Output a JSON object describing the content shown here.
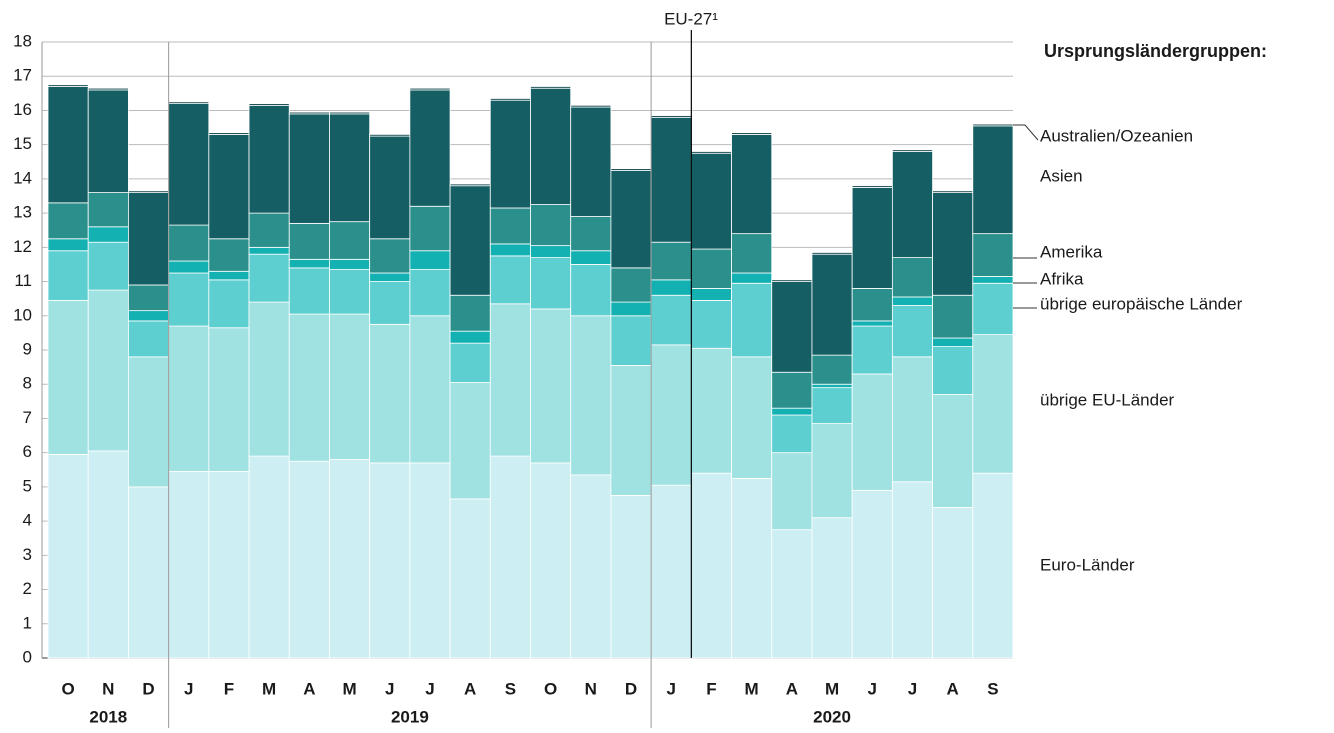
{
  "chart_data": {
    "type": "stacked-bar",
    "annotation": "EU-27¹",
    "legend_title": "Ursprungsländergruppen:",
    "categories": [
      "O",
      "N",
      "D",
      "J",
      "F",
      "M",
      "A",
      "M",
      "J",
      "J",
      "A",
      "S",
      "O",
      "N",
      "D",
      "J",
      "F",
      "M",
      "A",
      "M",
      "J",
      "J",
      "A",
      "S"
    ],
    "years": [
      "2018",
      "2019",
      "2020"
    ],
    "ylim": [
      0,
      18
    ],
    "yticks": [
      0,
      1,
      2,
      3,
      4,
      5,
      6,
      7,
      8,
      9,
      10,
      11,
      12,
      13,
      14,
      15,
      16,
      17,
      18
    ],
    "grid": true,
    "series": [
      {
        "name": "Euro-Länder",
        "color": "#cdeff3",
        "values": [
          5.95,
          6.05,
          5.0,
          5.45,
          5.45,
          5.9,
          5.75,
          5.8,
          5.7,
          5.7,
          4.65,
          5.9,
          5.7,
          5.35,
          4.75,
          5.05,
          5.4,
          5.25,
          3.75,
          4.1,
          4.9,
          5.15,
          4.4,
          5.4
        ]
      },
      {
        "name": "übrige EU-Länder",
        "color": "#a0e1e2",
        "values": [
          4.5,
          4.7,
          3.8,
          4.25,
          4.2,
          4.5,
          4.3,
          4.25,
          4.05,
          4.3,
          3.4,
          4.45,
          4.5,
          4.65,
          3.8,
          4.1,
          3.65,
          3.55,
          2.25,
          2.75,
          3.4,
          3.65,
          3.3,
          4.05
        ]
      },
      {
        "name": "übrige europäische Länder",
        "color": "#5ecfd0",
        "values": [
          1.45,
          1.4,
          1.05,
          1.55,
          1.4,
          1.4,
          1.35,
          1.3,
          1.25,
          1.35,
          1.15,
          1.4,
          1.5,
          1.5,
          1.45,
          1.45,
          1.4,
          2.15,
          1.1,
          1.05,
          1.4,
          1.5,
          1.4,
          1.5
        ]
      },
      {
        "name": "Afrika",
        "color": "#14b1b3",
        "values": [
          0.35,
          0.45,
          0.3,
          0.35,
          0.25,
          0.2,
          0.25,
          0.3,
          0.25,
          0.55,
          0.35,
          0.35,
          0.35,
          0.4,
          0.4,
          0.45,
          0.35,
          0.3,
          0.2,
          0.1,
          0.15,
          0.25,
          0.25,
          0.2
        ]
      },
      {
        "name": "Amerika",
        "color": "#2b8f8c",
        "values": [
          1.05,
          1.0,
          0.75,
          1.05,
          0.95,
          1.0,
          1.05,
          1.1,
          1.0,
          1.3,
          1.05,
          1.05,
          1.2,
          1.0,
          1.0,
          1.1,
          1.15,
          1.15,
          1.05,
          0.85,
          0.95,
          1.15,
          1.25,
          1.25
        ]
      },
      {
        "name": "Asien",
        "color": "#155f64",
        "values": [
          3.4,
          3.0,
          2.7,
          3.55,
          3.05,
          3.15,
          3.2,
          3.15,
          3.0,
          3.4,
          3.2,
          3.15,
          3.4,
          3.2,
          2.85,
          3.65,
          2.8,
          2.9,
          2.65,
          2.95,
          2.95,
          3.1,
          3.0,
          3.15
        ]
      },
      {
        "name": "Australien/Ozeanien",
        "color": "#0b4146",
        "values": [
          0.05,
          0.05,
          0.05,
          0.05,
          0.05,
          0.05,
          0.05,
          0.05,
          0.05,
          0.05,
          0.05,
          0.05,
          0.05,
          0.05,
          0.05,
          0.05,
          0.05,
          0.05,
          0.05,
          0.05,
          0.05,
          0.05,
          0.05,
          0.05
        ]
      }
    ]
  }
}
